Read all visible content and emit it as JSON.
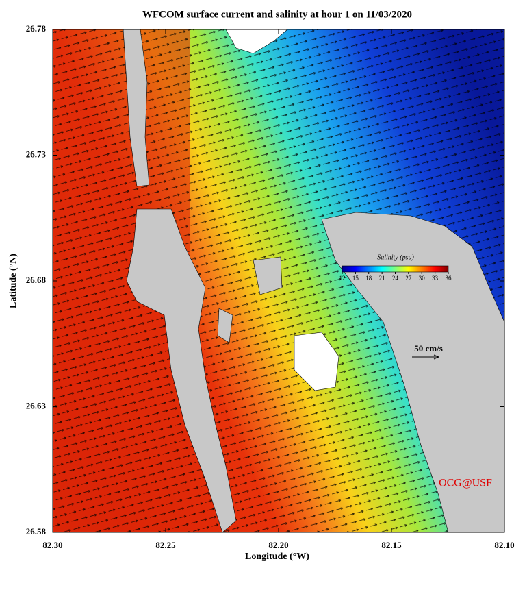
{
  "chart_data": {
    "type": "map",
    "title": "WFCOM surface current and salinity at hour 1 on 11/03/2020",
    "x_label": "Longitude (°W)",
    "y_label": "Latitude (°N)",
    "xlim": [
      82.3,
      82.1
    ],
    "xticks": [
      {
        "value": 82.3,
        "label": "82.30"
      },
      82.25,
      {
        "value": 82.2,
        "label": "82.20"
      },
      82.15,
      {
        "value": 82.1,
        "label": "82.10"
      }
    ],
    "ylim": [
      26.58,
      26.78
    ],
    "yticks": [
      26.58,
      26.63,
      26.68,
      26.73,
      26.78
    ],
    "colorbar": {
      "title": "Salinity (psu)",
      "clim": [
        12,
        36
      ],
      "ticks": [
        12,
        15,
        18,
        21,
        24,
        27,
        30,
        33,
        36
      ]
    },
    "reference_arrow": "50 cm/s",
    "credit": "OCG@USF"
  }
}
